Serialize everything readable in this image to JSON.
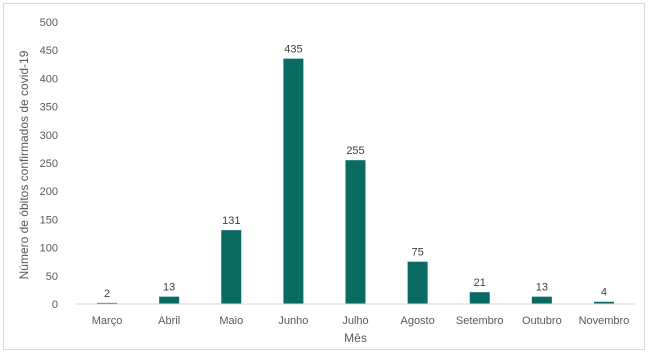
{
  "chart_data": {
    "type": "bar",
    "title": "",
    "xlabel": "Mês",
    "ylabel": "Número de óbitos confirmados de covid-19",
    "categories": [
      "Março",
      "Abril",
      "Maio",
      "Junho",
      "Julho",
      "Agosto",
      "Setembro",
      "Outubro",
      "Novembro"
    ],
    "values": [
      2,
      13,
      131,
      435,
      255,
      75,
      21,
      13,
      4
    ],
    "ylim": [
      0,
      500
    ],
    "yticks": [
      0,
      50,
      100,
      150,
      200,
      250,
      300,
      350,
      400,
      450,
      500
    ],
    "grid": false,
    "legend": "none",
    "bar_color": "#0b6b63",
    "axis_color": "#d9d9d9"
  }
}
